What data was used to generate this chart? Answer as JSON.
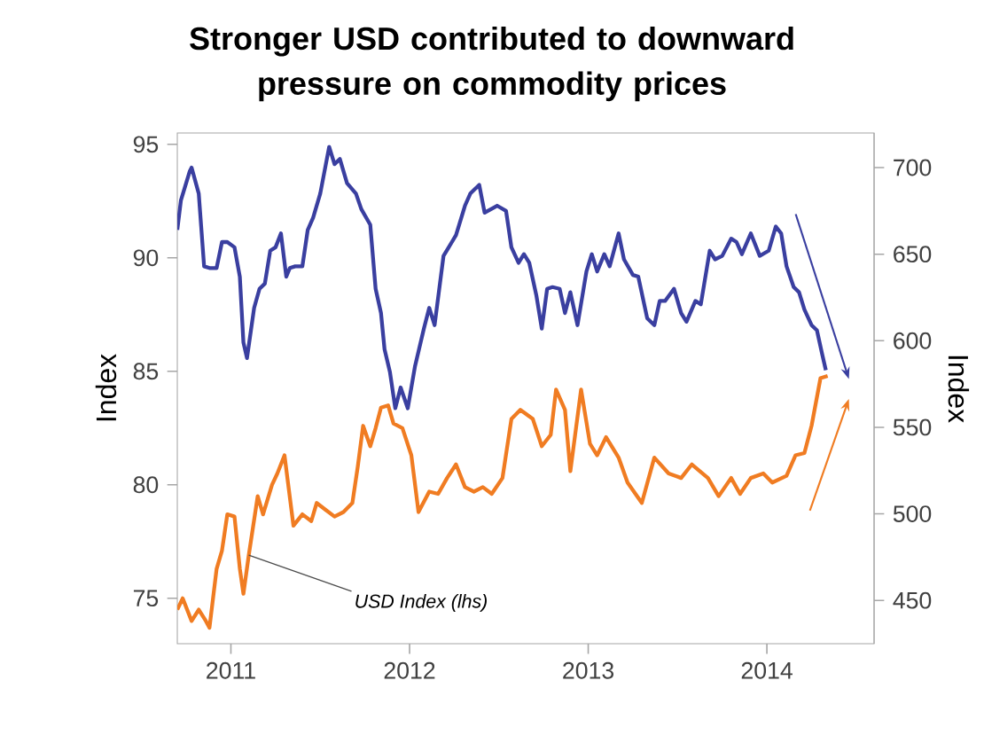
{
  "chart_data": {
    "type": "line",
    "title": "Stronger USD contributed to downward pressure on commodity prices",
    "ylabel": "Index",
    "y2label": "Index",
    "xlim": [
      2010.7,
      2014.6
    ],
    "xticks": [
      2011,
      2012,
      2013,
      2014
    ],
    "ylim": [
      73,
      95.5
    ],
    "yticks": [
      75,
      80,
      85,
      90,
      95
    ],
    "y2lim": [
      425,
      720
    ],
    "y2ticks": [
      450,
      500,
      550,
      600,
      650,
      700
    ],
    "series": [
      {
        "name": "USD Index (lhs)",
        "color": "#f07c22",
        "x": [
          2010.7,
          2010.73,
          2010.78,
          2010.82,
          2010.86,
          2010.88,
          2010.92,
          2010.95,
          2010.98,
          2011.02,
          2011.05,
          2011.07,
          2011.1,
          2011.15,
          2011.18,
          2011.23,
          2011.26,
          2011.3,
          2011.35,
          2011.4,
          2011.45,
          2011.48,
          2011.53,
          2011.58,
          2011.63,
          2011.68,
          2011.71,
          2011.74,
          2011.78,
          2011.81,
          2011.84,
          2011.88,
          2011.91,
          2011.96,
          2012.01,
          2012.05,
          2012.11,
          2012.16,
          2012.21,
          2012.26,
          2012.31,
          2012.36,
          2012.41,
          2012.46,
          2012.52,
          2012.57,
          2012.62,
          2012.69,
          2012.74,
          2012.79,
          2012.82,
          2012.87,
          2012.9,
          2012.96,
          2013.01,
          2013.05,
          2013.1,
          2013.17,
          2013.22,
          2013.3,
          2013.37,
          2013.45,
          2013.52,
          2013.58,
          2013.67,
          2013.73,
          2013.8,
          2013.85,
          2013.91,
          2013.98,
          2014.03,
          2014.11,
          2014.16,
          2014.21,
          2014.25,
          2014.3,
          2014.34
        ],
        "values": [
          74.5,
          75.0,
          74.0,
          74.5,
          74.0,
          73.7,
          76.3,
          77.1,
          78.7,
          78.6,
          76.3,
          75.2,
          76.9,
          79.5,
          78.7,
          80.0,
          80.5,
          81.3,
          78.2,
          78.7,
          78.4,
          79.2,
          78.9,
          78.6,
          78.8,
          79.2,
          80.8,
          82.6,
          81.7,
          82.5,
          83.4,
          83.5,
          82.7,
          82.5,
          81.3,
          78.8,
          79.7,
          79.6,
          80.3,
          80.9,
          79.9,
          79.7,
          79.9,
          79.6,
          80.3,
          82.9,
          83.3,
          82.9,
          81.7,
          82.2,
          84.2,
          83.3,
          80.6,
          84.2,
          81.8,
          81.3,
          82.1,
          81.2,
          80.1,
          79.2,
          81.2,
          80.5,
          80.3,
          80.9,
          80.3,
          79.5,
          80.3,
          79.6,
          80.3,
          80.5,
          80.1,
          80.4,
          81.3,
          81.4,
          82.6,
          84.7,
          84.8
        ]
      },
      {
        "color": "#3a3fa0",
        "axis": "y2",
        "x": [
          2010.7,
          2010.72,
          2010.77,
          2010.78,
          2010.82,
          2010.85,
          2010.88,
          2010.92,
          2010.95,
          2010.98,
          2011.02,
          2011.05,
          2011.07,
          2011.09,
          2011.13,
          2011.16,
          2011.19,
          2011.22,
          2011.25,
          2011.28,
          2011.31,
          2011.33,
          2011.36,
          2011.4,
          2011.43,
          2011.46,
          2011.5,
          2011.55,
          2011.58,
          2011.61,
          2011.65,
          2011.7,
          2011.73,
          2011.78,
          2011.81,
          2011.84,
          2011.86,
          2011.89,
          2011.92,
          2011.95,
          2011.99,
          2012.03,
          2012.08,
          2012.11,
          2012.14,
          2012.19,
          2012.26,
          2012.31,
          2012.34,
          2012.39,
          2012.42,
          2012.49,
          2012.54,
          2012.57,
          2012.61,
          2012.64,
          2012.67,
          2012.71,
          2012.74,
          2012.77,
          2012.8,
          2012.84,
          2012.87,
          2012.9,
          2012.94,
          2012.99,
          2013.02,
          2013.05,
          2013.09,
          2013.12,
          2013.17,
          2013.2,
          2013.25,
          2013.28,
          2013.33,
          2013.37,
          2013.4,
          2013.43,
          2013.48,
          2013.52,
          2013.55,
          2013.6,
          2013.63,
          2013.68,
          2013.71,
          2013.75,
          2013.8,
          2013.83,
          2013.86,
          2013.91,
          2013.96,
          2014.01,
          2014.05,
          2014.08,
          2014.11,
          2014.15,
          2014.18,
          2014.21,
          2014.25,
          2014.28,
          2014.31,
          2014.33
        ],
        "values": [
          664,
          681,
          698,
          700,
          685,
          643,
          642,
          642,
          657,
          657,
          654,
          637,
          599,
          590,
          619,
          630,
          633,
          652,
          654,
          662,
          637,
          642,
          643,
          643,
          664,
          671,
          685,
          712,
          702,
          705,
          691,
          685,
          676,
          667,
          630,
          616,
          595,
          582,
          561,
          573,
          561,
          585,
          607,
          619,
          609,
          649,
          661,
          678,
          685,
          690,
          674,
          678,
          675,
          654,
          645,
          650,
          645,
          626,
          607,
          630,
          631,
          630,
          616,
          628,
          609,
          640,
          650,
          640,
          650,
          643,
          662,
          647,
          638,
          637,
          613,
          609,
          623,
          623,
          630,
          616,
          611,
          623,
          621,
          652,
          647,
          649,
          659,
          657,
          650,
          662,
          649,
          652,
          666,
          662,
          643,
          631,
          628,
          618,
          609,
          606,
          592,
          583
        ]
      }
    ]
  }
}
